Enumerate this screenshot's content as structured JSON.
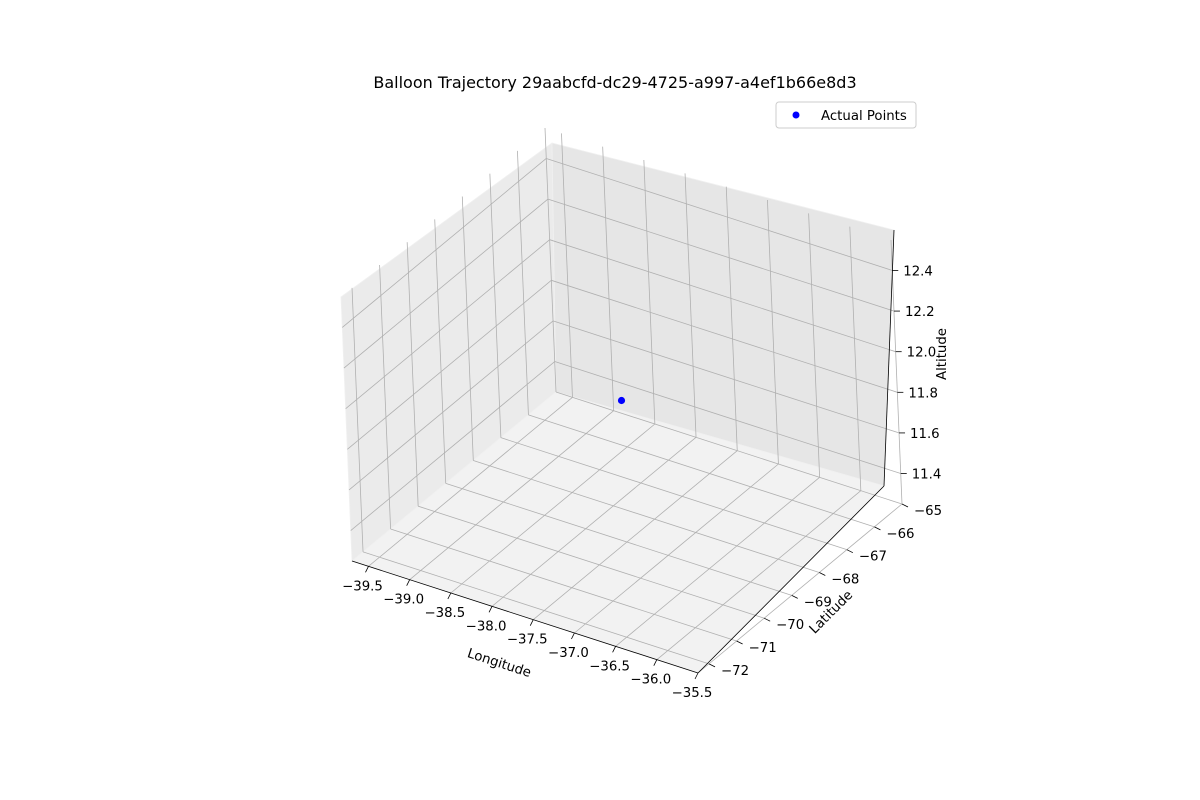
{
  "chart_data": {
    "type": "scatter",
    "projection": "3d",
    "title": "Balloon Trajectory 29aabcfd-dc29-4725-a997-a4ef1b66e8d3",
    "xlabel": "Longitude",
    "ylabel": "Latitude",
    "zlabel": "Altitude",
    "xlim": [
      -39.7,
      -35.5
    ],
    "ylim": [
      -72.4,
      -65.0
    ],
    "zlim": [
      11.25,
      12.55
    ],
    "x_ticks": [
      "−39.5",
      "−39.0",
      "−38.5",
      "−38.0",
      "−37.5",
      "−37.0",
      "−36.5",
      "−36.0",
      "−35.5"
    ],
    "y_ticks": [
      "−72",
      "−71",
      "−70",
      "−69",
      "−68",
      "−67",
      "−66",
      "−65"
    ],
    "z_ticks": [
      "11.4",
      "11.6",
      "11.8",
      "12.0",
      "12.2",
      "12.4"
    ],
    "grid": true,
    "legend": {
      "placement": "top-right",
      "entries": [
        "Actual Points"
      ]
    },
    "series": [
      {
        "name": "Actual Points",
        "color": "#0000ff",
        "marker": "circle",
        "points": [
          {
            "x": -37.6,
            "y": -68.7,
            "z": 11.9
          }
        ]
      }
    ]
  }
}
